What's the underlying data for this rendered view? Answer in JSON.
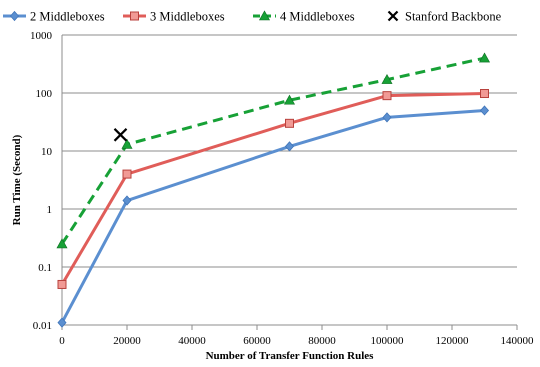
{
  "chart_data": {
    "type": "line",
    "xlabel": "Number of Transfer Function Rules",
    "ylabel": "Run Time (Second)",
    "xlim": [
      0,
      140000
    ],
    "ylim": [
      0.01,
      1000
    ],
    "yscale": "log",
    "grid": true,
    "legend_position": "top",
    "x_ticks": [
      "0",
      "20000",
      "40000",
      "60000",
      "80000",
      "100000",
      "120000",
      "140000"
    ],
    "y_ticks": [
      "0.01",
      "0.1",
      "1",
      "10",
      "100",
      "1000"
    ],
    "series": [
      {
        "name": "2 Middleboxes",
        "color": "#5b8fd0",
        "line_style": "solid",
        "marker": "diamond",
        "x": [
          0,
          20000,
          70000,
          100000,
          130000
        ],
        "y": [
          0.011,
          1.4,
          12,
          38,
          50
        ]
      },
      {
        "name": "3 Middleboxes",
        "color": "#e05d59",
        "line_style": "solid",
        "marker": "square",
        "x": [
          0,
          20000,
          70000,
          100000,
          130000
        ],
        "y": [
          0.05,
          4,
          30,
          90,
          98
        ]
      },
      {
        "name": "4 Middleboxes",
        "color": "#17a136",
        "line_style": "dashed",
        "marker": "triangle",
        "x": [
          0,
          20000,
          70000,
          100000,
          130000
        ],
        "y": [
          0.25,
          13,
          75,
          170,
          400
        ]
      },
      {
        "name": "Stanford Backbone",
        "color": "#000000",
        "line_style": "none",
        "marker": "x",
        "x": [
          18000
        ],
        "y": [
          19
        ]
      }
    ]
  }
}
